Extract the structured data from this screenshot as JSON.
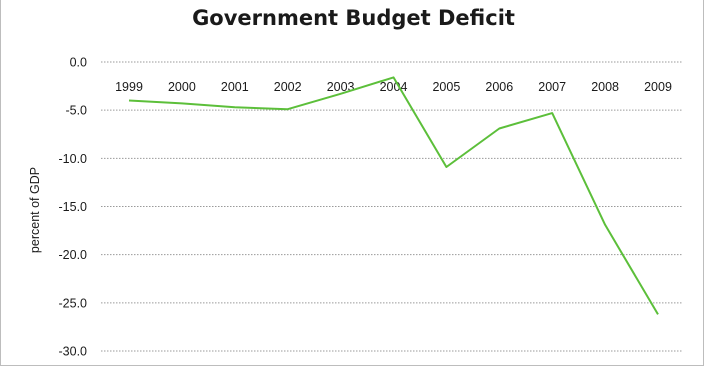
{
  "chart_data": {
    "type": "line",
    "title": "Government Budget Deficit",
    "xlabel": "",
    "ylabel": "percent of GDP",
    "categories": [
      "1999",
      "2000",
      "2001",
      "2002",
      "2003",
      "2004",
      "2005",
      "2006",
      "2007",
      "2008",
      "2009"
    ],
    "y_ticks": [
      "0.0",
      "-5.0",
      "-10.0",
      "-15.0",
      "-20.0",
      "-25.0",
      "-30.0"
    ],
    "ylim": [
      -30,
      0
    ],
    "grid": true,
    "legend": "none",
    "series": [
      {
        "values": [
          -4.0,
          -4.3,
          -4.7,
          -4.9,
          -3.3,
          -1.6,
          -10.9,
          -6.9,
          -5.3,
          -16.9,
          -26.2
        ],
        "color": "#5cbf3a"
      }
    ]
  }
}
